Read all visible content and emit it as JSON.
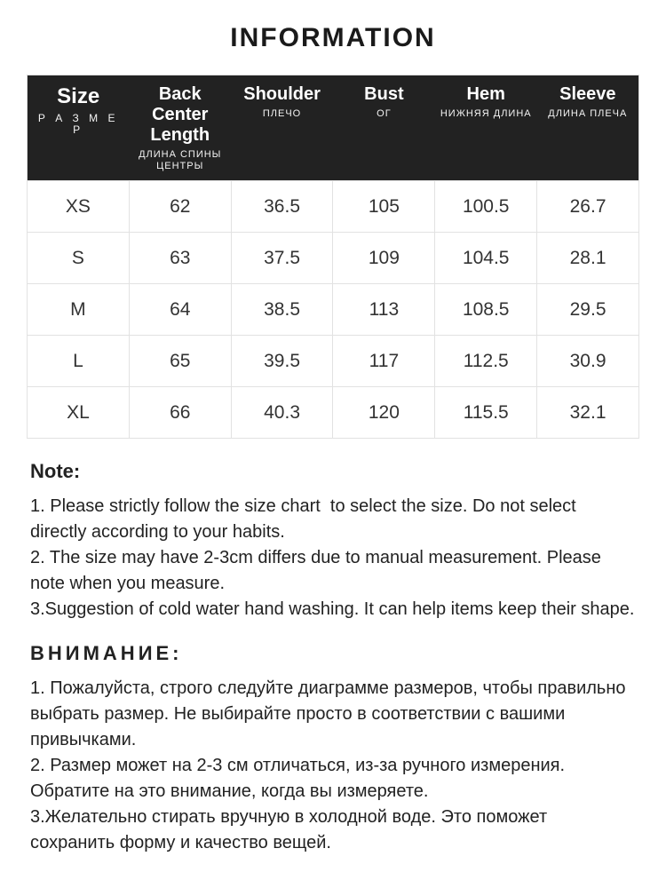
{
  "title": "INFORMATION",
  "table": {
    "type": "table",
    "header_bg": "#222222",
    "header_color": "#ffffff",
    "border_color": "#e2e2e2",
    "body_fontsize": 21,
    "header_fontsize": 20,
    "columns": [
      {
        "label": "Size",
        "sub": "Р А З М Е Р"
      },
      {
        "label": "Back Center Length",
        "sub": "ДЛИНА СПИНЫ ЦЕНТРЫ"
      },
      {
        "label": "Shoulder",
        "sub": "ПЛЕЧО"
      },
      {
        "label": "Bust",
        "sub": "ОГ"
      },
      {
        "label": "Hem",
        "sub": "НИЖНЯЯ ДЛИНА"
      },
      {
        "label": "Sleeve",
        "sub": "ДЛИНА ПЛЕЧА"
      }
    ],
    "rows": [
      [
        "XS",
        "62",
        "36.5",
        "105",
        "100.5",
        "26.7"
      ],
      [
        "S",
        "63",
        "37.5",
        "109",
        "104.5",
        "28.1"
      ],
      [
        "M",
        "64",
        "38.5",
        "113",
        "108.5",
        "29.5"
      ],
      [
        "L",
        "65",
        "39.5",
        "117",
        "112.5",
        "30.9"
      ],
      [
        "XL",
        "66",
        "40.3",
        "120",
        "115.5",
        "32.1"
      ]
    ]
  },
  "notes": {
    "en_heading": "Note:",
    "en_body": "1. Please strictly follow the size chart  to select the size. Do not select directly according to your habits.\n2. The size may have 2-3cm differs due to manual measurement. Please note when you measure.\n3.Suggestion of cold water hand washing. It can help items keep their shape.",
    "ru_heading": "ВНИМАНИЕ:",
    "ru_body": "1. Пожалуйста, строго следуйте диаграмме размеров, чтобы правильно выбрать размер. Не выбирайте просто в соответствии с вашими привычками.\n2. Размер может на 2-3 см отличаться, из-за ручного измерения. Обратите на это внимание, когда вы измеряете.\n3.Желательно стирать вручную в холодной воде. Это поможет сохранить форму и качество вещей."
  }
}
